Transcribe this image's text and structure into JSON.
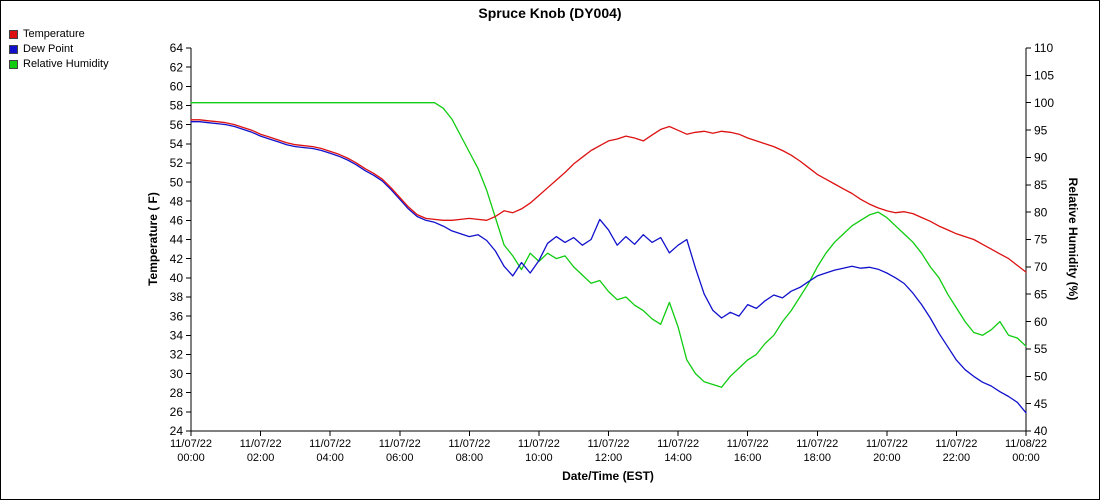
{
  "chart_data": {
    "type": "line",
    "title": "Spruce Knob (DY004)",
    "xlabel": "Date/Time (EST)",
    "ylabel_left": "Temperature ( F)",
    "ylabel_right": "Relative Humidity (%)",
    "xlim": [
      0,
      24
    ],
    "ylim_left": [
      24,
      64
    ],
    "ylim_right": [
      40,
      110
    ],
    "grid": false,
    "legend_position": "top-left",
    "yticks_left": [
      "64",
      "62",
      "60",
      "58",
      "56",
      "54",
      "52",
      "50",
      "48",
      "46",
      "44",
      "42",
      "40",
      "38",
      "36",
      "34",
      "32",
      "30",
      "28",
      "26",
      "24"
    ],
    "yticks_right": [
      "110",
      "105",
      "100",
      "95",
      "90",
      "85",
      "80",
      "75",
      "70",
      "65",
      "60",
      "55",
      "50",
      "45",
      "40"
    ],
    "xticks": [
      {
        "hour": 0,
        "date": "11/07/22",
        "time": "00:00"
      },
      {
        "hour": 2,
        "date": "11/07/22",
        "time": "02:00"
      },
      {
        "hour": 4,
        "date": "11/07/22",
        "time": "04:00"
      },
      {
        "hour": 6,
        "date": "11/07/22",
        "time": "06:00"
      },
      {
        "hour": 8,
        "date": "11/07/22",
        "time": "08:00"
      },
      {
        "hour": 10,
        "date": "11/07/22",
        "time": "10:00"
      },
      {
        "hour": 12,
        "date": "11/07/22",
        "time": "12:00"
      },
      {
        "hour": 14,
        "date": "11/07/22",
        "time": "14:00"
      },
      {
        "hour": 16,
        "date": "11/07/22",
        "time": "16:00"
      },
      {
        "hour": 18,
        "date": "11/07/22",
        "time": "18:00"
      },
      {
        "hour": 20,
        "date": "11/07/22",
        "time": "20:00"
      },
      {
        "hour": 22,
        "date": "11/07/22",
        "time": "22:00"
      },
      {
        "hour": 24,
        "date": "11/08/22",
        "time": "00:00"
      }
    ],
    "x": {
      "start": 0,
      "step": 0.25,
      "units": "hours"
    },
    "legend": [
      {
        "label": "Temperature",
        "color": "#dd1111"
      },
      {
        "label": "Dew Point",
        "color": "#1111cc"
      },
      {
        "label": "Relative Humidity",
        "color": "#11cc11"
      }
    ],
    "series": [
      {
        "name": "Relative Humidity",
        "axis": "right",
        "color": "#11cc11",
        "values": [
          100,
          100,
          100,
          100,
          100,
          100,
          100,
          100,
          100,
          100,
          100,
          100,
          100,
          100,
          100,
          100,
          100,
          100,
          100,
          100,
          100,
          100,
          100,
          100,
          100,
          100,
          100,
          100,
          100,
          99,
          97,
          94,
          91,
          88,
          84,
          79,
          74,
          72,
          69.5,
          72.5,
          71,
          72.5,
          71.5,
          72,
          70,
          68.5,
          67,
          67.5,
          65.5,
          64,
          64.5,
          63,
          62,
          60.5,
          59.5,
          63.5,
          59,
          53,
          50.5,
          49,
          48.5,
          48,
          50,
          51.5,
          53,
          54,
          56,
          57.5,
          60,
          62,
          64.5,
          67,
          70,
          72.5,
          74.5,
          76,
          77.5,
          78.5,
          79.5,
          80,
          79,
          77.5,
          76,
          74.5,
          72.5,
          70,
          68,
          65,
          62.5,
          60,
          58,
          57.5,
          58.5,
          60,
          57.5,
          57,
          55.5
        ]
      },
      {
        "name": "Dew Point",
        "axis": "left",
        "color": "#1111cc",
        "values": [
          56.3,
          56.3,
          56.2,
          56.1,
          56.0,
          55.8,
          55.5,
          55.2,
          54.8,
          54.5,
          54.2,
          53.9,
          53.7,
          53.6,
          53.5,
          53.3,
          53.0,
          52.7,
          52.3,
          51.8,
          51.2,
          50.7,
          50.1,
          49.2,
          48.2,
          47.2,
          46.4,
          46.0,
          45.8,
          45.4,
          44.9,
          44.6,
          44.3,
          44.5,
          43.9,
          42.8,
          41.2,
          40.2,
          41.6,
          40.5,
          41.8,
          43.6,
          44.3,
          43.7,
          44.2,
          43.4,
          44.0,
          46.1,
          45.0,
          43.4,
          44.3,
          43.5,
          44.5,
          43.7,
          44.2,
          42.6,
          43.4,
          44.0,
          41.0,
          38.3,
          36.6,
          35.8,
          36.4,
          36.0,
          37.2,
          36.8,
          37.6,
          38.2,
          37.9,
          38.6,
          39.0,
          39.6,
          40.2,
          40.5,
          40.8,
          41.0,
          41.2,
          41.0,
          41.1,
          40.9,
          40.5,
          40.0,
          39.4,
          38.4,
          37.2,
          35.8,
          34.2,
          32.8,
          31.4,
          30.4,
          29.7,
          29.1,
          28.7,
          28.1,
          27.6,
          27.0,
          25.9
        ]
      },
      {
        "name": "Temperature",
        "axis": "left",
        "color": "#dd1111",
        "values": [
          56.5,
          56.5,
          56.4,
          56.3,
          56.2,
          56.0,
          55.7,
          55.4,
          55.0,
          54.7,
          54.4,
          54.1,
          53.9,
          53.8,
          53.7,
          53.5,
          53.2,
          52.9,
          52.5,
          52.0,
          51.4,
          50.9,
          50.3,
          49.4,
          48.4,
          47.4,
          46.6,
          46.2,
          46.1,
          46.0,
          46.0,
          46.1,
          46.2,
          46.1,
          46.0,
          46.4,
          47.0,
          46.8,
          47.2,
          47.8,
          48.6,
          49.4,
          50.2,
          51.0,
          51.9,
          52.6,
          53.3,
          53.8,
          54.3,
          54.5,
          54.8,
          54.6,
          54.3,
          54.9,
          55.5,
          55.8,
          55.4,
          55.0,
          55.2,
          55.3,
          55.1,
          55.3,
          55.2,
          55.0,
          54.6,
          54.3,
          54.0,
          53.7,
          53.3,
          52.8,
          52.2,
          51.5,
          50.8,
          50.3,
          49.8,
          49.3,
          48.8,
          48.2,
          47.7,
          47.3,
          47.0,
          46.8,
          46.9,
          46.7,
          46.3,
          45.9,
          45.4,
          45.0,
          44.6,
          44.3,
          44.0,
          43.5,
          43.0,
          42.5,
          42.0,
          41.3,
          40.6
        ]
      }
    ]
  }
}
